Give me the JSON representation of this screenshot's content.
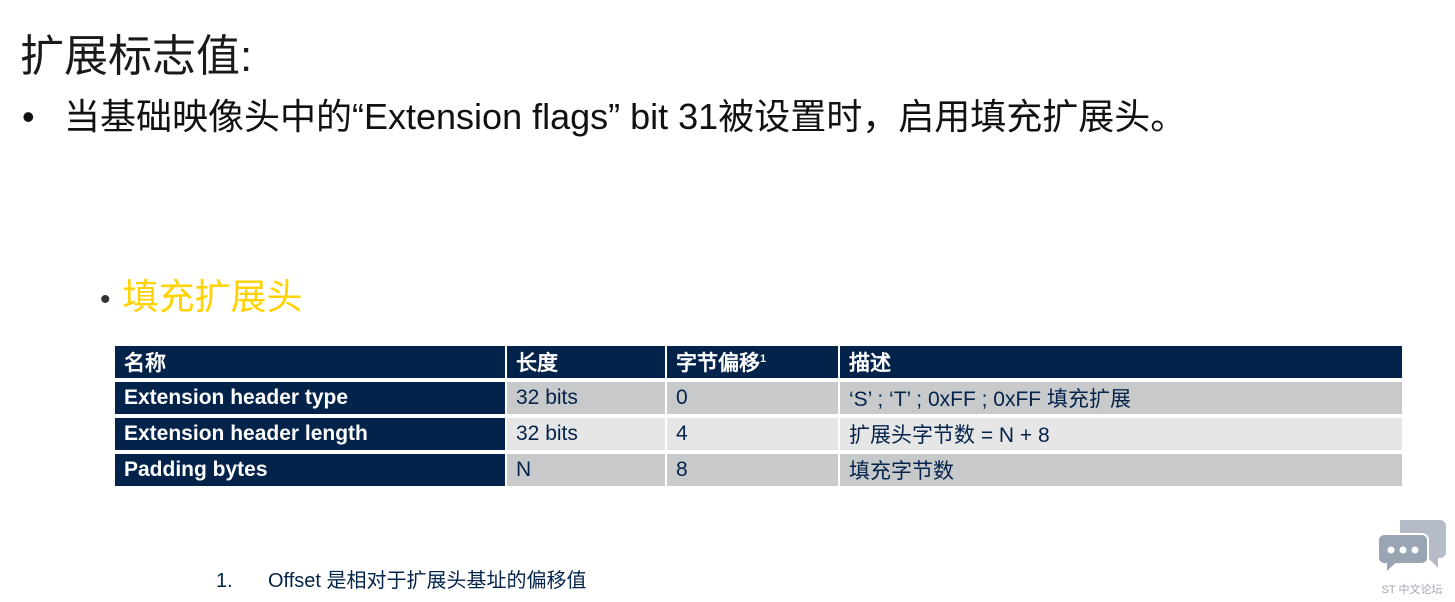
{
  "title": "扩展标志值:",
  "bullet1": "当基础映像头中的“Extension flags” bit 31被设置时，启用填充扩展头。",
  "bullet2": "填充扩展头",
  "table": {
    "headers": [
      "名称",
      "长度",
      "字节偏移",
      "描述"
    ],
    "header_sup": "1",
    "rows": [
      [
        "Extension header type",
        "32 bits",
        "0",
        "‘S’ ; ‘T’ ; 0xFF ; 0xFF 填充扩展"
      ],
      [
        "Extension header length",
        "32 bits",
        "4",
        "扩展头字节数 = N + 8"
      ],
      [
        "Padding bytes",
        "N",
        "8",
        "填充字节数"
      ]
    ]
  },
  "footnote": {
    "number": "1.",
    "text": "Offset 是相对于扩展头基址的偏移值"
  },
  "logo": {
    "caption": "ST 中文论坛",
    "icon": "chat-bubbles-icon"
  },
  "colors": {
    "navy": "#03234b",
    "accent": "#ffd200"
  }
}
